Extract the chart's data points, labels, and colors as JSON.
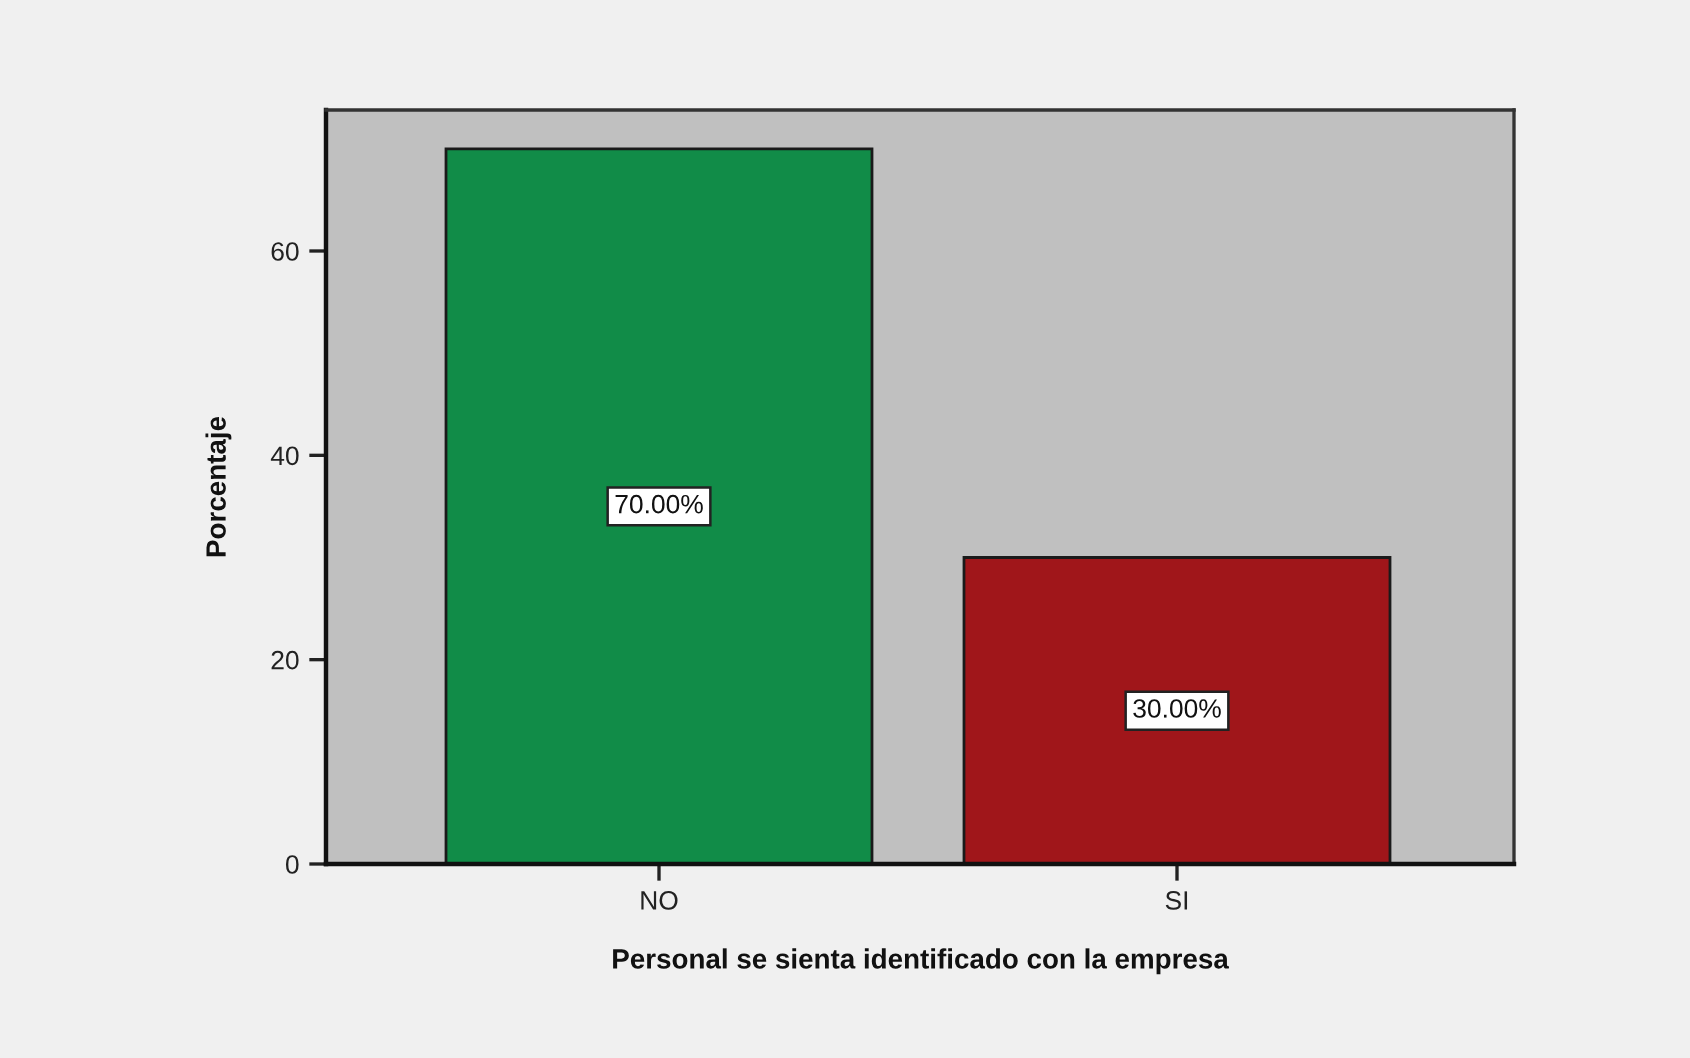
{
  "chart_data": {
    "type": "bar",
    "categories": [
      "NO",
      "SI"
    ],
    "values": [
      70,
      30
    ],
    "colors": [
      "#118c48",
      "#a0161a"
    ],
    "xlabel": "Personal se sienta identificado con la empresa",
    "ylabel": "Porcentaje",
    "ylim": [
      0,
      73.8
    ],
    "yticks": [
      0,
      20,
      40,
      60
    ],
    "value_labels": [
      "70.00%",
      "30.00%"
    ]
  }
}
